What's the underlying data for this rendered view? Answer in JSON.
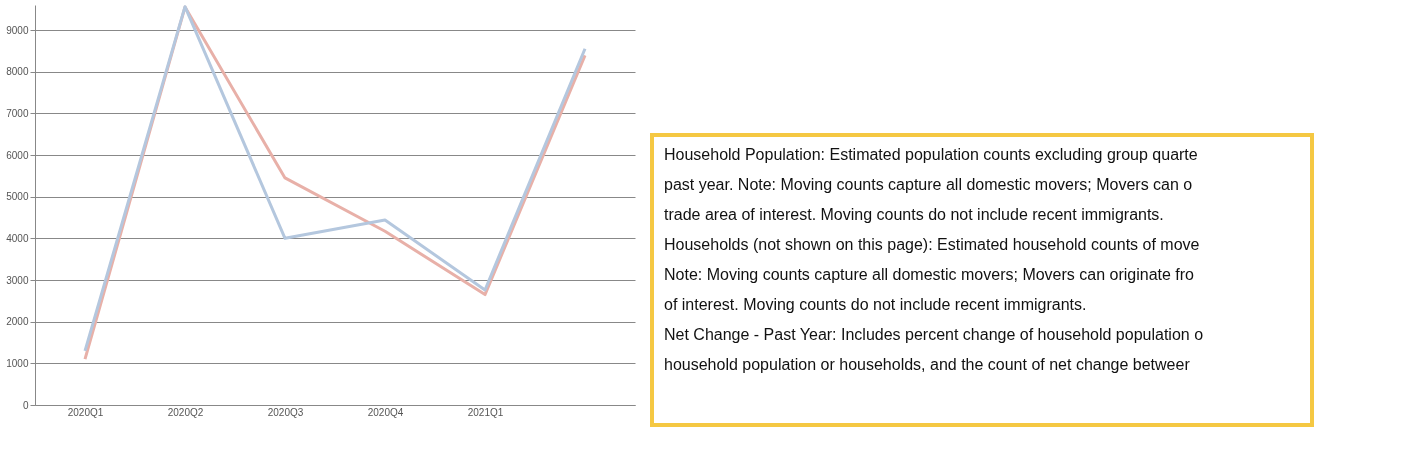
{
  "chart_data": {
    "type": "line",
    "categories": [
      "2020Q1",
      "2020Q2",
      "2020Q3",
      "2020Q4",
      "2021Q1",
      null
    ],
    "series": [
      {
        "color": "#e8b0a8",
        "values": [
          1100,
          9550,
          5450,
          4170,
          2650,
          8390
        ]
      },
      {
        "color": "#b4c7de",
        "values": [
          1300,
          9560,
          4000,
          4440,
          2760,
          8550
        ]
      }
    ],
    "ylim": [
      0,
      9600
    ],
    "yticks": [
      0,
      1000,
      2000,
      3000,
      4000,
      5000,
      6000,
      7000,
      8000,
      9000
    ],
    "grid": "y",
    "marker": "none",
    "line_style": "solid",
    "annotations": [
      "Household Population: Estimated population counts excluding group quarte",
      "past year. Note: Moving counts capture all domestic movers; Movers can o",
      "trade area of interest. Moving counts do not include recent immigrants.",
      "Households (not shown on this page): Estimated household counts of move",
      "Note: Moving counts capture all domestic movers; Movers can originate fro",
      "of interest. Moving counts do not include recent immigrants.",
      "Net Change - Past Year: Includes percent change of household population o",
      "household population or households, and the count of net change betweer"
    ]
  }
}
